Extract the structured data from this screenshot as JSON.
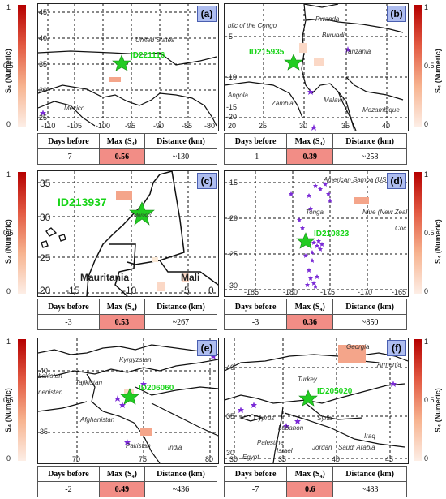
{
  "colorbar": {
    "title": "S₄ (Numeric)",
    "ticks": [
      "1",
      "0.5",
      "0"
    ]
  },
  "table_headers": {
    "days_before": "Days before",
    "max": "Max (S₄)",
    "distance": "Distance (km)"
  },
  "panels": [
    {
      "label": "(a)",
      "event_id": "ID221116",
      "places": [
        "United States",
        "Mexico"
      ],
      "x_ticks": [
        "-110",
        "-105",
        "-100",
        "-95",
        "-90",
        "-85",
        "-80"
      ],
      "y_ticks": [
        "45",
        "40",
        "35",
        "30",
        "25"
      ],
      "days_before": "-7",
      "max_s4": "0.56",
      "distance": "~130"
    },
    {
      "label": "(b)",
      "event_id": "ID215935",
      "places": [
        "blic of the Congo",
        "Rwanda",
        "Burundi",
        "Tanzania",
        "Angola",
        "Zambia",
        "Malawi",
        "Mozambique"
      ],
      "x_ticks": [
        "20",
        "25",
        "30",
        "35",
        "40"
      ],
      "y_ticks": [
        "-5",
        "-10",
        "-15",
        "-20"
      ],
      "days_before": "-1",
      "max_s4": "0.39",
      "distance": "~258"
    },
    {
      "label": "(c)",
      "event_id": "ID213937",
      "places": [
        "Morocco",
        "Mauritania",
        "Mali"
      ],
      "x_ticks": [
        "-15",
        "-10",
        "-5",
        "0"
      ],
      "y_ticks": [
        "35",
        "30",
        "25",
        "20"
      ],
      "days_before": "-3",
      "max_s4": "0.53",
      "distance": "~267"
    },
    {
      "label": "(d)",
      "event_id": "ID210823",
      "places": [
        "American Samoa (US)",
        "Tonga",
        "Niue (New Zeal",
        "Coc"
      ],
      "x_ticks": [
        "-185",
        "-180",
        "-175",
        "-170",
        "-165"
      ],
      "y_ticks": [
        "-15",
        "-20",
        "-25",
        "-30"
      ],
      "days_before": "-3",
      "max_s4": "0.36",
      "distance": "~850"
    },
    {
      "label": "(e)",
      "event_id": "ID206060",
      "places": [
        "Kyrgyzstan",
        "bekistan",
        "Tajikistan",
        "nenistan",
        "Afghanistan",
        "Pakistan",
        "India"
      ],
      "x_ticks": [
        "70",
        "75",
        "80"
      ],
      "y_ticks": [
        "40",
        "35"
      ],
      "days_before": "-2",
      "max_s4": "0.49",
      "distance": "~436"
    },
    {
      "label": "(f)",
      "event_id": "ID205020",
      "places": [
        "Georgia",
        "Armenia",
        "Turkey",
        "Cyprus",
        "Syria",
        "Lebanon",
        "Iraq",
        "Palestine",
        "Israel",
        "Jordan",
        "Saudi Arabia",
        "Egypt"
      ],
      "x_ticks": [
        "30",
        "35",
        "40",
        "45"
      ],
      "y_ticks": [
        "40",
        "35",
        "30"
      ],
      "days_before": "-7",
      "max_s4": "0.6",
      "distance": "~483"
    }
  ]
}
